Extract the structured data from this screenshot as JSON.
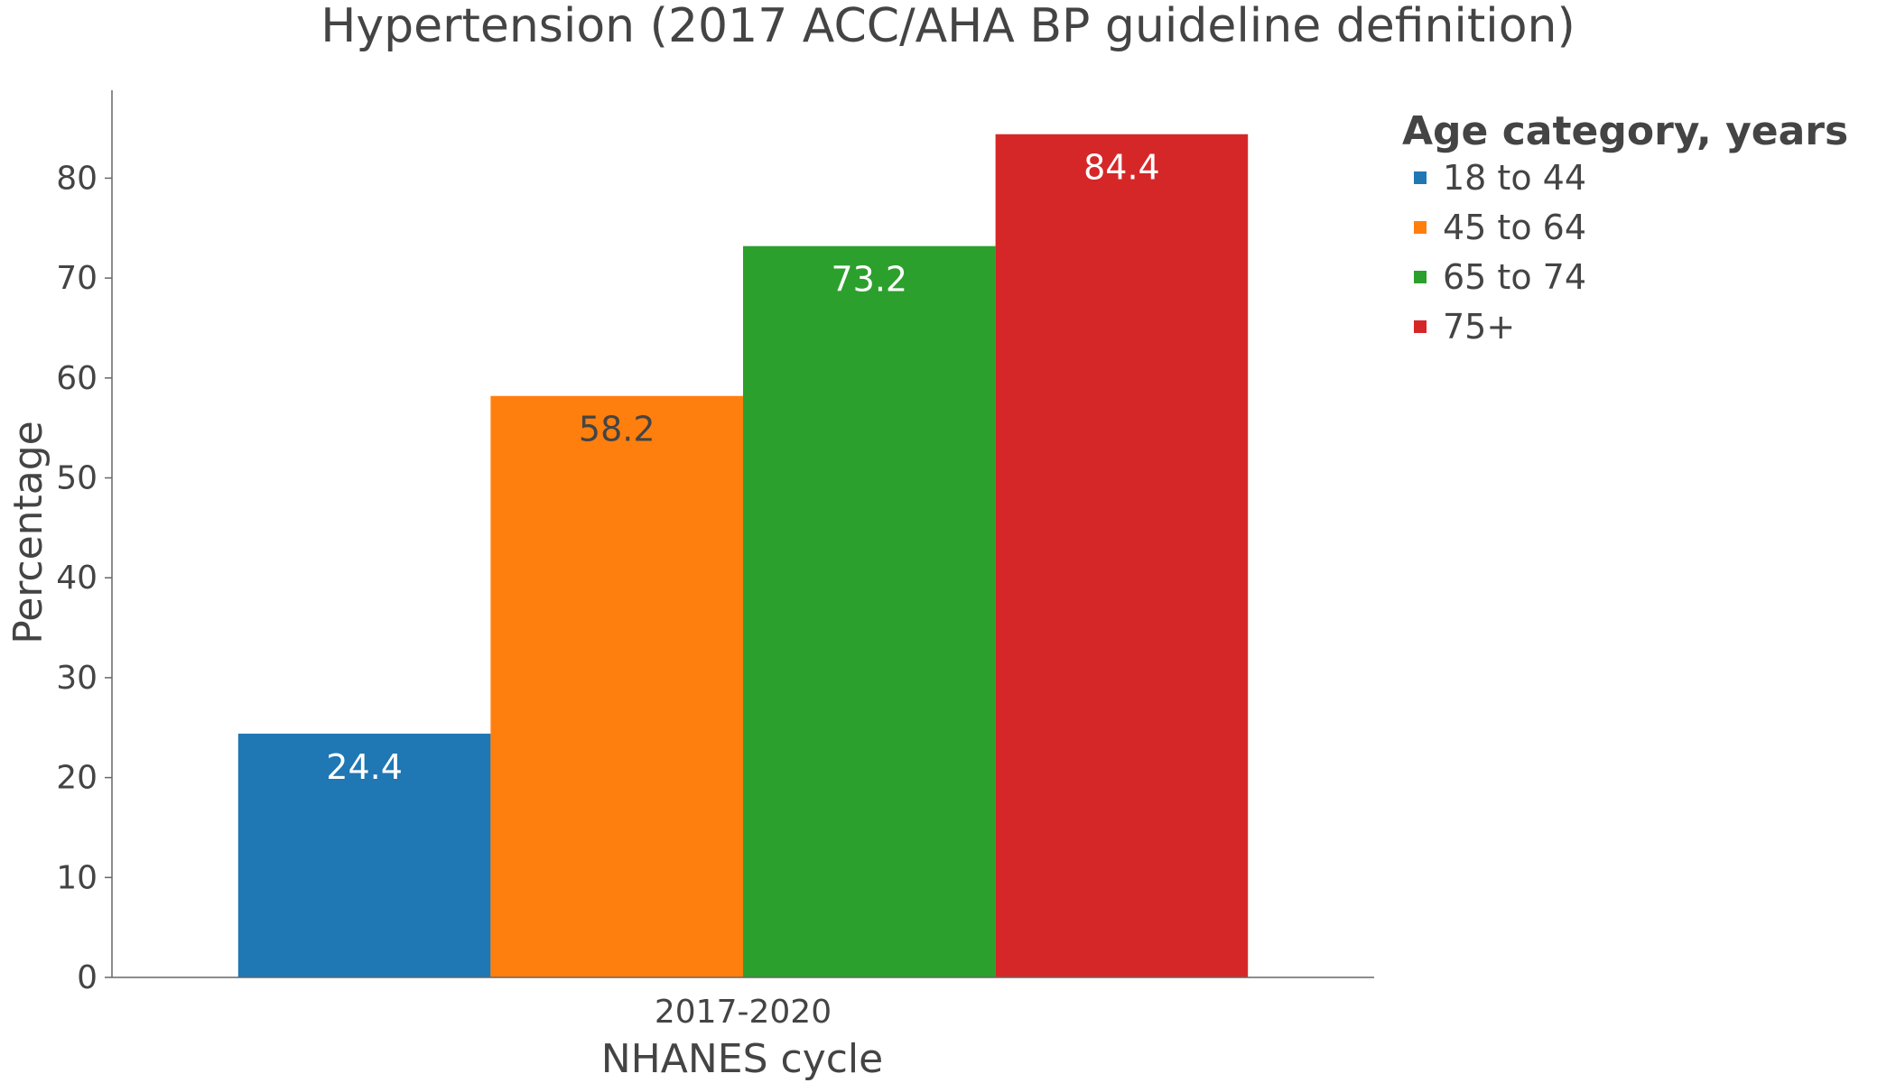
{
  "chart_data": {
    "type": "bar",
    "title": "Hypertension (2017 ACC/AHA BP guideline definition)",
    "xlabel": "NHANES cycle",
    "ylabel": "Percentage",
    "categories": [
      "2017-2020"
    ],
    "ylim": [
      0,
      88.8
    ],
    "yticks": [
      0,
      10,
      20,
      30,
      40,
      50,
      60,
      70,
      80
    ],
    "grid": false,
    "legend": {
      "title": "Age category, years",
      "placement": "top-right"
    },
    "series": [
      {
        "name": "18 to 44",
        "values": [
          24.4
        ],
        "color": "#1f77b4",
        "label_color": "#ffffff"
      },
      {
        "name": "45 to 64",
        "values": [
          58.2
        ],
        "color": "#ff7f0e",
        "label_color": "#444444"
      },
      {
        "name": "65 to 74",
        "values": [
          73.2
        ],
        "color": "#2ca02c",
        "label_color": "#ffffff"
      },
      {
        "name": "75+",
        "values": [
          84.4
        ],
        "color": "#d62728",
        "label_color": "#ffffff"
      }
    ]
  }
}
